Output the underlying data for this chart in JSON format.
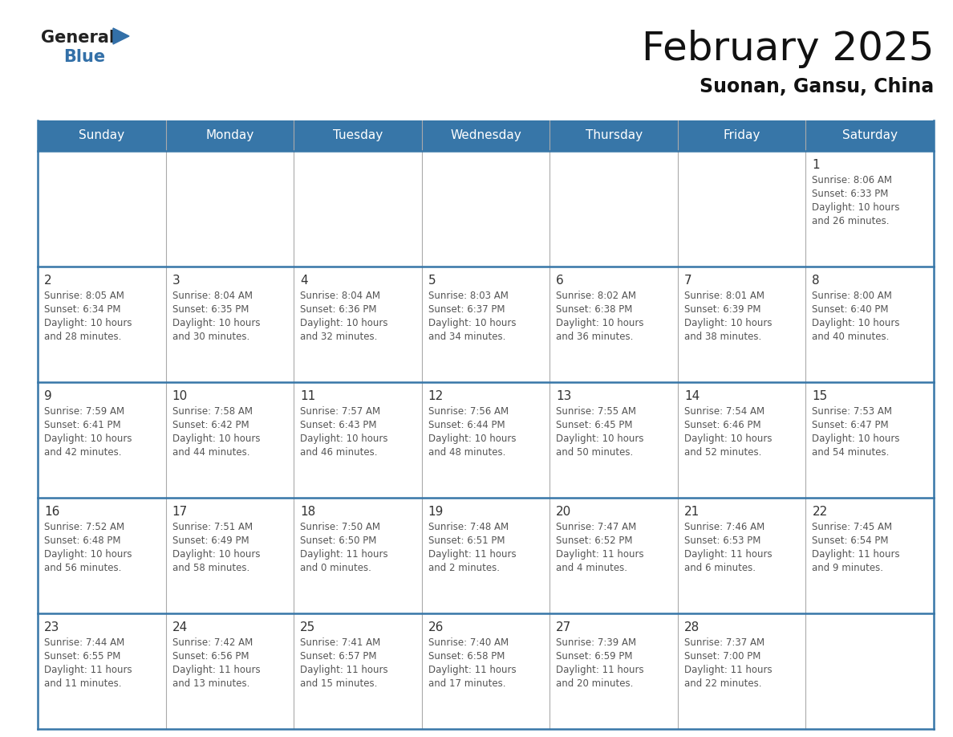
{
  "title": "February 2025",
  "subtitle": "Suonan, Gansu, China",
  "header_bg": "#3776A8",
  "header_text_color": "#FFFFFF",
  "day_names": [
    "Sunday",
    "Monday",
    "Tuesday",
    "Wednesday",
    "Thursday",
    "Friday",
    "Saturday"
  ],
  "cell_bg": "#FFFFFF",
  "border_color": "#3776A8",
  "text_color": "#555555",
  "day_num_color": "#333333",
  "title_color": "#111111",
  "subtitle_color": "#111111",
  "logo_general_color": "#222222",
  "logo_blue_color": "#3370A8",
  "calendar": [
    [
      null,
      null,
      null,
      null,
      null,
      null,
      {
        "day": 1,
        "sunrise": "8:06 AM",
        "sunset": "6:33 PM",
        "daylight_h": "10 hours",
        "daylight_m": "and 26 minutes."
      }
    ],
    [
      {
        "day": 2,
        "sunrise": "8:05 AM",
        "sunset": "6:34 PM",
        "daylight_h": "10 hours",
        "daylight_m": "and 28 minutes."
      },
      {
        "day": 3,
        "sunrise": "8:04 AM",
        "sunset": "6:35 PM",
        "daylight_h": "10 hours",
        "daylight_m": "and 30 minutes."
      },
      {
        "day": 4,
        "sunrise": "8:04 AM",
        "sunset": "6:36 PM",
        "daylight_h": "10 hours",
        "daylight_m": "and 32 minutes."
      },
      {
        "day": 5,
        "sunrise": "8:03 AM",
        "sunset": "6:37 PM",
        "daylight_h": "10 hours",
        "daylight_m": "and 34 minutes."
      },
      {
        "day": 6,
        "sunrise": "8:02 AM",
        "sunset": "6:38 PM",
        "daylight_h": "10 hours",
        "daylight_m": "and 36 minutes."
      },
      {
        "day": 7,
        "sunrise": "8:01 AM",
        "sunset": "6:39 PM",
        "daylight_h": "10 hours",
        "daylight_m": "and 38 minutes."
      },
      {
        "day": 8,
        "sunrise": "8:00 AM",
        "sunset": "6:40 PM",
        "daylight_h": "10 hours",
        "daylight_m": "and 40 minutes."
      }
    ],
    [
      {
        "day": 9,
        "sunrise": "7:59 AM",
        "sunset": "6:41 PM",
        "daylight_h": "10 hours",
        "daylight_m": "and 42 minutes."
      },
      {
        "day": 10,
        "sunrise": "7:58 AM",
        "sunset": "6:42 PM",
        "daylight_h": "10 hours",
        "daylight_m": "and 44 minutes."
      },
      {
        "day": 11,
        "sunrise": "7:57 AM",
        "sunset": "6:43 PM",
        "daylight_h": "10 hours",
        "daylight_m": "and 46 minutes."
      },
      {
        "day": 12,
        "sunrise": "7:56 AM",
        "sunset": "6:44 PM",
        "daylight_h": "10 hours",
        "daylight_m": "and 48 minutes."
      },
      {
        "day": 13,
        "sunrise": "7:55 AM",
        "sunset": "6:45 PM",
        "daylight_h": "10 hours",
        "daylight_m": "and 50 minutes."
      },
      {
        "day": 14,
        "sunrise": "7:54 AM",
        "sunset": "6:46 PM",
        "daylight_h": "10 hours",
        "daylight_m": "and 52 minutes."
      },
      {
        "day": 15,
        "sunrise": "7:53 AM",
        "sunset": "6:47 PM",
        "daylight_h": "10 hours",
        "daylight_m": "and 54 minutes."
      }
    ],
    [
      {
        "day": 16,
        "sunrise": "7:52 AM",
        "sunset": "6:48 PM",
        "daylight_h": "10 hours",
        "daylight_m": "and 56 minutes."
      },
      {
        "day": 17,
        "sunrise": "7:51 AM",
        "sunset": "6:49 PM",
        "daylight_h": "10 hours",
        "daylight_m": "and 58 minutes."
      },
      {
        "day": 18,
        "sunrise": "7:50 AM",
        "sunset": "6:50 PM",
        "daylight_h": "11 hours",
        "daylight_m": "and 0 minutes."
      },
      {
        "day": 19,
        "sunrise": "7:48 AM",
        "sunset": "6:51 PM",
        "daylight_h": "11 hours",
        "daylight_m": "and 2 minutes."
      },
      {
        "day": 20,
        "sunrise": "7:47 AM",
        "sunset": "6:52 PM",
        "daylight_h": "11 hours",
        "daylight_m": "and 4 minutes."
      },
      {
        "day": 21,
        "sunrise": "7:46 AM",
        "sunset": "6:53 PM",
        "daylight_h": "11 hours",
        "daylight_m": "and 6 minutes."
      },
      {
        "day": 22,
        "sunrise": "7:45 AM",
        "sunset": "6:54 PM",
        "daylight_h": "11 hours",
        "daylight_m": "and 9 minutes."
      }
    ],
    [
      {
        "day": 23,
        "sunrise": "7:44 AM",
        "sunset": "6:55 PM",
        "daylight_h": "11 hours",
        "daylight_m": "and 11 minutes."
      },
      {
        "day": 24,
        "sunrise": "7:42 AM",
        "sunset": "6:56 PM",
        "daylight_h": "11 hours",
        "daylight_m": "and 13 minutes."
      },
      {
        "day": 25,
        "sunrise": "7:41 AM",
        "sunset": "6:57 PM",
        "daylight_h": "11 hours",
        "daylight_m": "and 15 minutes."
      },
      {
        "day": 26,
        "sunrise": "7:40 AM",
        "sunset": "6:58 PM",
        "daylight_h": "11 hours",
        "daylight_m": "and 17 minutes."
      },
      {
        "day": 27,
        "sunrise": "7:39 AM",
        "sunset": "6:59 PM",
        "daylight_h": "11 hours",
        "daylight_m": "and 20 minutes."
      },
      {
        "day": 28,
        "sunrise": "7:37 AM",
        "sunset": "7:00 PM",
        "daylight_h": "11 hours",
        "daylight_m": "and 22 minutes."
      },
      null
    ]
  ]
}
